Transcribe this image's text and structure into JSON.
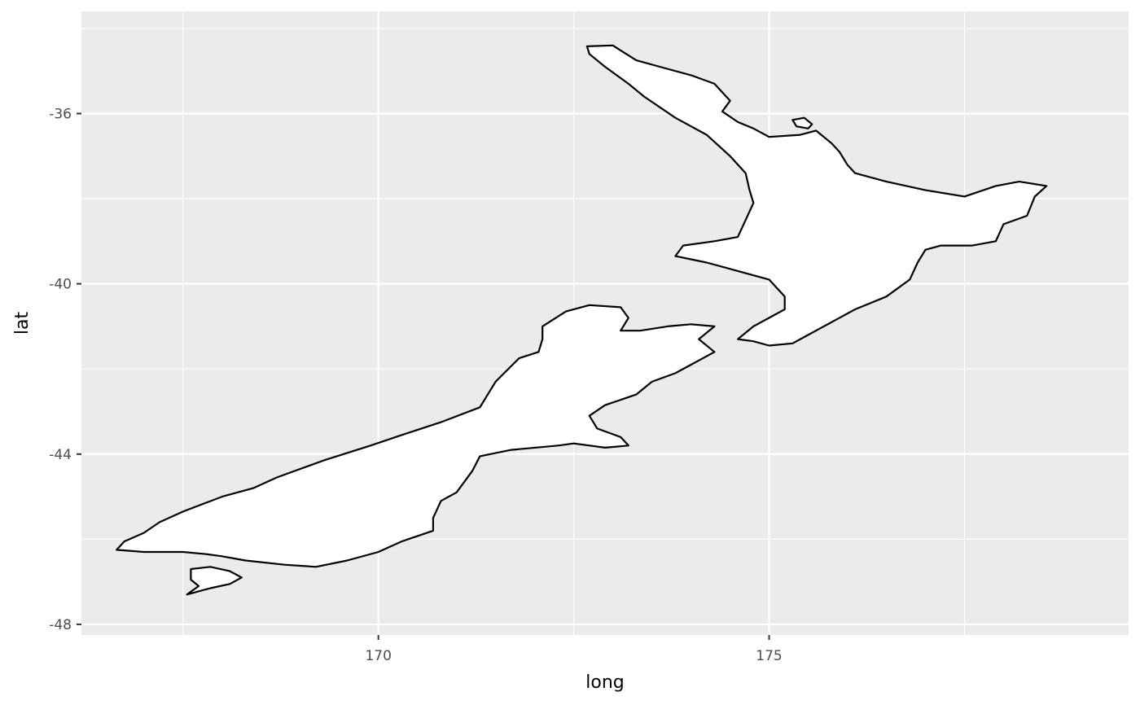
{
  "chart_data": {
    "type": "map",
    "xlabel": "long",
    "ylabel": "lat",
    "xlim": [
      166.2,
      179.6
    ],
    "ylim": [
      -48.25,
      -33.6
    ],
    "x_ticks": [
      170,
      175
    ],
    "y_ticks": [
      -36,
      -40,
      -44,
      -48
    ],
    "x_tick_labels": [
      "170",
      "175"
    ],
    "y_tick_labels": [
      "-36",
      "-40",
      "-44",
      "-48"
    ],
    "grid": true,
    "panel_background": "#ebebeb",
    "land_fill": "#ffffff",
    "coast_color": "#000000",
    "shapes": [
      {
        "name": "north-island",
        "points": [
          [
            172.67,
            -34.42
          ],
          [
            173.0,
            -34.4
          ],
          [
            173.3,
            -34.75
          ],
          [
            173.6,
            -34.9
          ],
          [
            174.0,
            -35.1
          ],
          [
            174.3,
            -35.3
          ],
          [
            174.5,
            -35.7
          ],
          [
            174.4,
            -35.95
          ],
          [
            174.6,
            -36.2
          ],
          [
            174.8,
            -36.35
          ],
          [
            175.0,
            -36.55
          ],
          [
            175.4,
            -36.5
          ],
          [
            175.6,
            -36.4
          ],
          [
            175.8,
            -36.7
          ],
          [
            175.9,
            -36.9
          ],
          [
            176.0,
            -37.2
          ],
          [
            176.1,
            -37.4
          ],
          [
            176.5,
            -37.6
          ],
          [
            177.0,
            -37.8
          ],
          [
            177.5,
            -37.95
          ],
          [
            177.9,
            -37.7
          ],
          [
            178.2,
            -37.6
          ],
          [
            178.55,
            -37.7
          ],
          [
            178.4,
            -37.95
          ],
          [
            178.3,
            -38.4
          ],
          [
            178.0,
            -38.6
          ],
          [
            177.9,
            -39.0
          ],
          [
            177.6,
            -39.1
          ],
          [
            177.2,
            -39.1
          ],
          [
            177.0,
            -39.2
          ],
          [
            176.9,
            -39.5
          ],
          [
            176.8,
            -39.9
          ],
          [
            176.5,
            -40.3
          ],
          [
            176.1,
            -40.6
          ],
          [
            175.8,
            -40.9
          ],
          [
            175.5,
            -41.2
          ],
          [
            175.3,
            -41.4
          ],
          [
            175.0,
            -41.45
          ],
          [
            174.8,
            -41.35
          ],
          [
            174.6,
            -41.3
          ],
          [
            174.8,
            -41.0
          ],
          [
            175.2,
            -40.6
          ],
          [
            175.2,
            -40.3
          ],
          [
            175.0,
            -39.9
          ],
          [
            174.6,
            -39.7
          ],
          [
            174.2,
            -39.5
          ],
          [
            173.8,
            -39.35
          ],
          [
            173.9,
            -39.1
          ],
          [
            174.3,
            -39.0
          ],
          [
            174.6,
            -38.9
          ],
          [
            174.7,
            -38.5
          ],
          [
            174.8,
            -38.1
          ],
          [
            174.75,
            -37.8
          ],
          [
            174.7,
            -37.4
          ],
          [
            174.5,
            -37.0
          ],
          [
            174.2,
            -36.5
          ],
          [
            173.8,
            -36.1
          ],
          [
            173.4,
            -35.6
          ],
          [
            173.2,
            -35.3
          ],
          [
            172.9,
            -34.9
          ],
          [
            172.7,
            -34.6
          ]
        ]
      },
      {
        "name": "south-island",
        "points": [
          [
            172.7,
            -40.5
          ],
          [
            173.1,
            -40.55
          ],
          [
            173.2,
            -40.8
          ],
          [
            173.1,
            -41.1
          ],
          [
            173.35,
            -41.1
          ],
          [
            173.7,
            -41.0
          ],
          [
            174.0,
            -40.95
          ],
          [
            174.3,
            -41.0
          ],
          [
            174.1,
            -41.3
          ],
          [
            174.3,
            -41.6
          ],
          [
            174.0,
            -41.9
          ],
          [
            173.8,
            -42.1
          ],
          [
            173.5,
            -42.3
          ],
          [
            173.3,
            -42.6
          ],
          [
            172.9,
            -42.85
          ],
          [
            172.7,
            -43.1
          ],
          [
            172.8,
            -43.4
          ],
          [
            173.1,
            -43.6
          ],
          [
            173.2,
            -43.8
          ],
          [
            172.9,
            -43.85
          ],
          [
            172.5,
            -43.75
          ],
          [
            172.3,
            -43.8
          ],
          [
            171.7,
            -43.9
          ],
          [
            171.3,
            -44.05
          ],
          [
            171.2,
            -44.4
          ],
          [
            171.0,
            -44.9
          ],
          [
            170.8,
            -45.1
          ],
          [
            170.7,
            -45.5
          ],
          [
            170.7,
            -45.8
          ],
          [
            170.3,
            -46.05
          ],
          [
            170.0,
            -46.3
          ],
          [
            169.6,
            -46.5
          ],
          [
            169.2,
            -46.65
          ],
          [
            168.8,
            -46.6
          ],
          [
            168.3,
            -46.5
          ],
          [
            168.0,
            -46.4
          ],
          [
            167.8,
            -46.35
          ],
          [
            167.5,
            -46.3
          ],
          [
            167.0,
            -46.3
          ],
          [
            166.65,
            -46.25
          ],
          [
            166.75,
            -46.05
          ],
          [
            167.0,
            -45.85
          ],
          [
            167.2,
            -45.6
          ],
          [
            167.5,
            -45.35
          ],
          [
            168.0,
            -45.0
          ],
          [
            168.4,
            -44.8
          ],
          [
            168.7,
            -44.55
          ],
          [
            169.3,
            -44.15
          ],
          [
            169.9,
            -43.8
          ],
          [
            170.3,
            -43.55
          ],
          [
            170.8,
            -43.25
          ],
          [
            171.3,
            -42.9
          ],
          [
            171.4,
            -42.6
          ],
          [
            171.5,
            -42.3
          ],
          [
            171.8,
            -41.75
          ],
          [
            172.05,
            -41.6
          ],
          [
            172.1,
            -41.3
          ],
          [
            172.1,
            -41.0
          ],
          [
            172.4,
            -40.65
          ]
        ]
      },
      {
        "name": "stewart-island",
        "points": [
          [
            167.6,
            -46.7
          ],
          [
            167.85,
            -46.65
          ],
          [
            168.1,
            -46.75
          ],
          [
            168.25,
            -46.9
          ],
          [
            168.1,
            -47.05
          ],
          [
            167.85,
            -47.15
          ],
          [
            167.55,
            -47.3
          ],
          [
            167.7,
            -47.1
          ],
          [
            167.6,
            -46.95
          ]
        ]
      },
      {
        "name": "great-barrier-island",
        "points": [
          [
            175.3,
            -36.15
          ],
          [
            175.45,
            -36.1
          ],
          [
            175.55,
            -36.25
          ],
          [
            175.5,
            -36.35
          ],
          [
            175.35,
            -36.3
          ]
        ]
      }
    ]
  }
}
